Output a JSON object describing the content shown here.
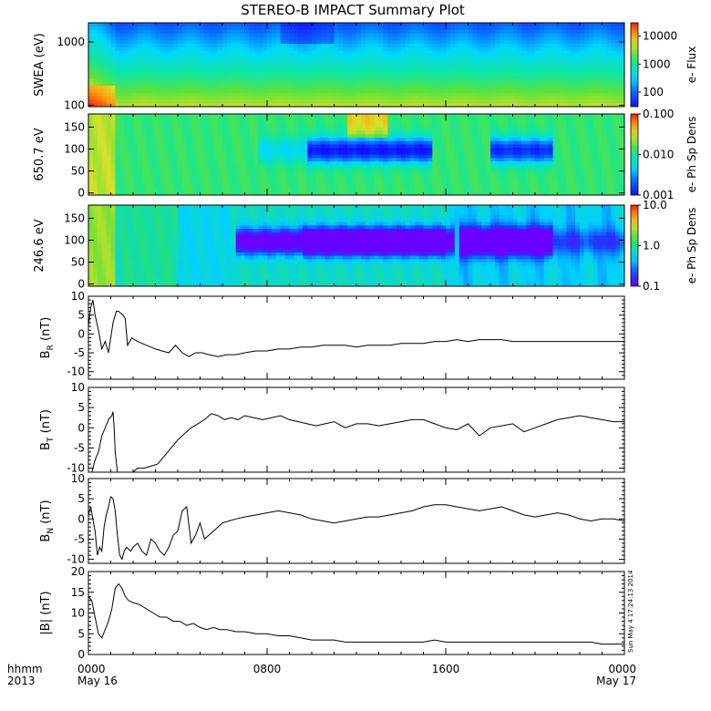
{
  "title": "STEREO-B IMPACT Summary Plot",
  "x_axis": {
    "label_line1": "hhmm",
    "label_line2": "2013",
    "ticks": [
      {
        "hour": 0,
        "line1": "0000",
        "line2": "May 16"
      },
      {
        "hour": 8,
        "line1": "0800",
        "line2": ""
      },
      {
        "hour": 16,
        "line1": "1600",
        "line2": ""
      },
      {
        "hour": 24,
        "line1": "0000",
        "line2": "May 17"
      }
    ]
  },
  "timestamp": "Sun May  4 17:24:13 2014",
  "chart_data": [
    {
      "type": "heatmap",
      "id": "swea",
      "ylabel": "SWEA (eV)",
      "yscale": "log",
      "ylim": [
        95,
        2000
      ],
      "yticks": [
        {
          "v": 100,
          "label": "100"
        },
        {
          "v": 1000,
          "label": "1000"
        }
      ],
      "colorbar": {
        "label": "e- Flux",
        "scale": "log",
        "range": [
          30,
          30000
        ],
        "ticks": [
          {
            "v": 100,
            "label": "100"
          },
          {
            "v": 1000,
            "label": "1000"
          },
          {
            "v": 10000,
            "label": "10000"
          }
        ]
      }
    },
    {
      "type": "heatmap",
      "id": "pad650",
      "ylabel": "650.7 eV",
      "yscale": "linear",
      "ylim": [
        -5,
        180
      ],
      "yticks": [
        {
          "v": 0,
          "label": "0"
        },
        {
          "v": 50,
          "label": "50"
        },
        {
          "v": 100,
          "label": "100"
        },
        {
          "v": 150,
          "label": "150"
        }
      ],
      "colorbar": {
        "label": "e- Ph Sp Dens",
        "scale": "log",
        "range": [
          0.001,
          0.1
        ],
        "ticks": [
          {
            "v": 0.001,
            "label": "0.001"
          },
          {
            "v": 0.01,
            "label": "0.010"
          },
          {
            "v": 0.1,
            "label": "0.100"
          }
        ]
      }
    },
    {
      "type": "heatmap",
      "id": "pad246",
      "ylabel": "246.6 eV",
      "yscale": "linear",
      "ylim": [
        -5,
        180
      ],
      "yticks": [
        {
          "v": 0,
          "label": "0"
        },
        {
          "v": 50,
          "label": "50"
        },
        {
          "v": 100,
          "label": "100"
        },
        {
          "v": 150,
          "label": "150"
        }
      ],
      "colorbar": {
        "label": "e- Ph Sp Dens",
        "scale": "log",
        "range": [
          0.1,
          10
        ],
        "ticks": [
          {
            "v": 0.1,
            "label": "0.1"
          },
          {
            "v": 1,
            "label": "1.0"
          },
          {
            "v": 10,
            "label": "10.0"
          }
        ]
      }
    },
    {
      "type": "line",
      "id": "br",
      "ylabel_main": "B",
      "ylabel_sub": "R",
      "ylabel_unit": "(nT)",
      "ylim": [
        -12,
        10
      ],
      "yticks": [
        {
          "v": -10,
          "label": "-10"
        },
        {
          "v": -5,
          "label": "-5"
        },
        {
          "v": 0,
          "label": "0"
        },
        {
          "v": 5,
          "label": "5"
        },
        {
          "v": 10,
          "label": "10"
        }
      ],
      "x_hours": [
        0.0,
        0.1,
        0.2,
        0.3,
        0.45,
        0.6,
        0.75,
        0.9,
        1.0,
        1.1,
        1.2,
        1.25,
        1.35,
        1.45,
        1.55,
        1.65,
        1.75,
        1.85,
        1.95,
        2.05,
        2.2,
        2.4,
        2.6,
        2.8,
        3.0,
        3.3,
        3.6,
        3.9,
        4.2,
        4.5,
        4.8,
        5.1,
        5.4,
        5.8,
        6.2,
        6.6,
        7.0,
        7.5,
        8.0,
        8.5,
        9.0,
        9.5,
        10.0,
        10.5,
        11.0,
        11.5,
        12.0,
        12.5,
        13.0,
        13.5,
        14.0,
        14.5,
        15.0,
        15.5,
        16.0,
        16.5,
        17.0,
        17.5,
        18.0,
        18.5,
        19.0,
        19.5,
        20.0,
        20.5,
        21.0,
        21.5,
        22.0,
        22.5,
        23.0,
        23.5,
        24.0
      ],
      "values": [
        2,
        7,
        9,
        5,
        1,
        -4,
        -2,
        -5,
        -1,
        3,
        5,
        6,
        6,
        5.5,
        5,
        4,
        -3,
        -2,
        -1,
        -1.5,
        -2,
        -2.5,
        -3,
        -3.5,
        -4,
        -4.5,
        -5,
        -3,
        -5,
        -6,
        -5,
        -5,
        -5.5,
        -6,
        -5.5,
        -5.5,
        -5,
        -4.5,
        -4.5,
        -4,
        -4,
        -3.5,
        -3.5,
        -3,
        -3,
        -3,
        -3.5,
        -3,
        -3,
        -3,
        -2.5,
        -2.5,
        -2.5,
        -2,
        -2,
        -1.5,
        -2,
        -1.5,
        -1.5,
        -1.5,
        -2,
        -2,
        -2,
        -2,
        -2,
        -2,
        -2,
        -2,
        -2,
        -2,
        -2
      ]
    },
    {
      "type": "line",
      "id": "bt",
      "ylabel_main": "B",
      "ylabel_sub": "T",
      "ylabel_unit": "(nT)",
      "ylim": [
        -11,
        10
      ],
      "yticks": [
        {
          "v": -10,
          "label": "-10"
        },
        {
          "v": -5,
          "label": "-5"
        },
        {
          "v": 0,
          "label": "0"
        },
        {
          "v": 5,
          "label": "5"
        },
        {
          "v": 10,
          "label": "10"
        }
      ],
      "x_hours": [
        0.0,
        0.15,
        0.3,
        0.45,
        0.6,
        0.75,
        0.9,
        1.05,
        1.1,
        1.15,
        1.2,
        1.3,
        2.0,
        2.2,
        2.5,
        2.8,
        3.1,
        3.4,
        3.7,
        4.0,
        4.3,
        4.6,
        4.9,
        5.2,
        5.5,
        5.8,
        6.1,
        6.4,
        6.7,
        7.0,
        7.4,
        7.8,
        8.2,
        8.6,
        9.0,
        9.4,
        9.8,
        10.2,
        10.6,
        11.0,
        11.5,
        12.0,
        12.5,
        13.0,
        13.5,
        14.0,
        14.5,
        15.0,
        15.5,
        16.0,
        16.5,
        17.0,
        17.5,
        18.0,
        18.5,
        19.0,
        19.5,
        20.0,
        20.5,
        21.0,
        21.5,
        22.0,
        22.5,
        23.0,
        23.5,
        24.0
      ],
      "values": [
        -11,
        -11,
        -8,
        -6,
        -2,
        0,
        2,
        3,
        4,
        0,
        -6,
        -11,
        -11,
        -10,
        -10,
        -9.5,
        -9,
        -7,
        -5,
        -3,
        -1.5,
        0,
        1,
        2,
        3.5,
        3,
        2,
        2.5,
        2,
        3,
        2.5,
        2,
        2.5,
        3,
        2,
        1.5,
        1,
        0.5,
        1,
        1.5,
        0,
        1,
        1,
        0.5,
        1,
        1.5,
        2,
        2,
        1,
        0,
        -0.5,
        1,
        -2,
        0,
        0.5,
        1,
        -1,
        0,
        1,
        2,
        2.5,
        3,
        2.5,
        2,
        1.5,
        1.5
      ]
    },
    {
      "type": "line",
      "id": "bn",
      "ylabel_main": "B",
      "ylabel_sub": "N",
      "ylabel_unit": "(nT)",
      "ylim": [
        -11,
        10
      ],
      "yticks": [
        {
          "v": -10,
          "label": "-10"
        },
        {
          "v": -5,
          "label": "-5"
        },
        {
          "v": 0,
          "label": "0"
        },
        {
          "v": 5,
          "label": "5"
        },
        {
          "v": 10,
          "label": "10"
        }
      ],
      "x_hours": [
        0.0,
        0.1,
        0.2,
        0.3,
        0.4,
        0.5,
        0.6,
        0.7,
        0.8,
        0.9,
        1.0,
        1.1,
        1.2,
        1.3,
        1.4,
        1.5,
        1.6,
        1.7,
        1.8,
        1.9,
        2.0,
        2.2,
        2.4,
        2.6,
        2.8,
        3.0,
        3.2,
        3.4,
        3.6,
        3.8,
        4.0,
        4.2,
        4.4,
        4.6,
        4.8,
        5.0,
        5.2,
        5.4,
        5.6,
        5.8,
        6.0,
        6.3,
        6.6,
        7.0,
        7.5,
        8.0,
        8.5,
        9.0,
        9.5,
        10.0,
        10.5,
        11.0,
        11.5,
        12.0,
        12.5,
        13.0,
        13.5,
        14.0,
        14.5,
        15.0,
        15.5,
        16.0,
        16.5,
        17.0,
        17.5,
        18.0,
        18.5,
        19.0,
        19.5,
        20.0,
        20.5,
        21.0,
        21.5,
        22.0,
        22.5,
        23.0,
        23.5,
        24.0
      ],
      "values": [
        1,
        3,
        0,
        -3,
        -9,
        -7,
        -8,
        -2,
        1,
        3,
        5.5,
        5,
        2,
        -4,
        -9,
        -10,
        -8,
        -7,
        -7.5,
        -8,
        -7,
        -6,
        -8,
        -9,
        -5,
        -6,
        -8,
        -9,
        -7,
        -4,
        -3,
        2,
        3,
        -6,
        -4,
        -1,
        -5,
        -4,
        -3,
        -2,
        -1,
        -0.5,
        0,
        0.5,
        1,
        1.5,
        2,
        1.5,
        1,
        0,
        -0.5,
        -1,
        -0.5,
        0,
        0.5,
        0.5,
        1,
        1.5,
        2,
        3,
        3.5,
        3.5,
        3,
        2.5,
        2,
        2.5,
        3,
        2,
        1,
        0.5,
        1,
        1.5,
        1,
        0,
        -0.5,
        0,
        0,
        -0.5
      ]
    },
    {
      "type": "line",
      "id": "bmag",
      "ylabel_main": "|B|",
      "ylabel_sub": "",
      "ylabel_unit": "(nT)",
      "ylim": [
        0,
        20
      ],
      "yticks": [
        {
          "v": 0,
          "label": "0"
        },
        {
          "v": 5,
          "label": "5"
        },
        {
          "v": 10,
          "label": "10"
        },
        {
          "v": 15,
          "label": "15"
        },
        {
          "v": 20,
          "label": "20"
        }
      ],
      "x_hours": [
        0.0,
        0.15,
        0.3,
        0.45,
        0.6,
        0.75,
        0.9,
        1.05,
        1.2,
        1.35,
        1.5,
        1.65,
        1.8,
        2.0,
        2.3,
        2.6,
        2.9,
        3.2,
        3.5,
        3.8,
        4.1,
        4.4,
        4.7,
        5.0,
        5.3,
        5.6,
        5.9,
        6.2,
        6.6,
        7.0,
        7.5,
        8.0,
        8.5,
        9.0,
        9.5,
        10.0,
        10.5,
        11.0,
        11.5,
        12.0,
        12.5,
        13.0,
        13.5,
        14.0,
        14.5,
        15.0,
        15.5,
        16.0,
        16.5,
        17.0,
        17.5,
        18.0,
        18.5,
        19.0,
        19.5,
        20.0,
        20.5,
        21.0,
        21.5,
        22.0,
        22.5,
        23.0,
        23.5,
        24.0
      ],
      "values": [
        14,
        13,
        9,
        5,
        4,
        6,
        8,
        11,
        16,
        17,
        16,
        14,
        13,
        12.5,
        12,
        11,
        10,
        9,
        9,
        8,
        8,
        7,
        7.5,
        6.5,
        6,
        6.5,
        6,
        6,
        5.5,
        5.5,
        5,
        5,
        4.5,
        4.5,
        4,
        3.5,
        3.5,
        3.5,
        3,
        3,
        3,
        3,
        3,
        3,
        3,
        3,
        3.5,
        3,
        3,
        3,
        3,
        3,
        3,
        3,
        3,
        3,
        3,
        3,
        3,
        3,
        3,
        2.5,
        2.5,
        2.5
      ]
    }
  ]
}
